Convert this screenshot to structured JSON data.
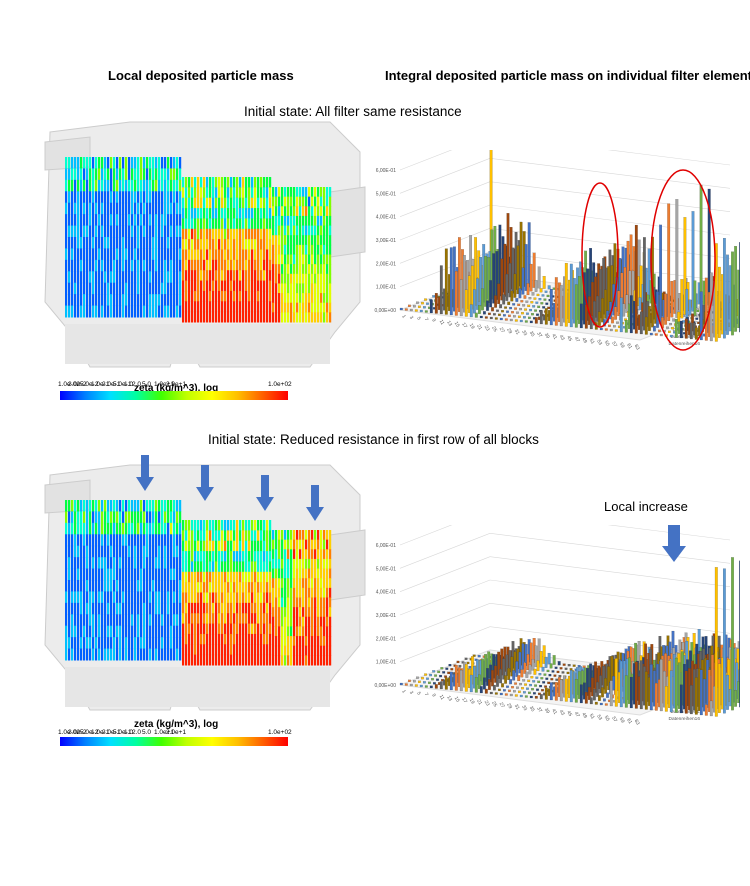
{
  "headers": {
    "left": "Local deposited particle mass",
    "right": "Integral deposited particle mass on individual filter element"
  },
  "panel_top": {
    "subtitle": "Initial state: All filter same resistance",
    "colorbar": {
      "title": "zeta (kg/m^3), log",
      "ticks": [
        "1.0e-02",
        "2.0e-2",
        "5.0e-2",
        "1.0e-1",
        "2.0e-1",
        "5.0e-1",
        "1.0",
        "2.0",
        "5.0",
        "1.0e+1",
        "2.0e+1",
        "1.0e+02"
      ]
    }
  },
  "panel_bottom": {
    "subtitle": "Initial state: Reduced resistance in first row of all blocks",
    "colorbar": {
      "title": "zeta (kg/m^3), log",
      "ticks": [
        "1.0e-02",
        "2.0e-2",
        "5.0e-2",
        "1.0e-1",
        "2.0e-1",
        "5.0e-1",
        "1.0",
        "2.0",
        "5.0",
        "1.0e+1",
        "2.0e+1",
        "1.0e+02"
      ]
    },
    "annotation": "Local increase"
  },
  "colors": {
    "colormap": [
      "#0000ff",
      "#00a0ff",
      "#00ffff",
      "#00ff60",
      "#a0ff00",
      "#ffff00",
      "#ffa000",
      "#ff0000"
    ],
    "highlight_circle": "#e00000",
    "arrow": "#4472c4"
  },
  "chart_data": [
    {
      "type": "bar",
      "title": "",
      "z_ticks": [
        "0,00E+00",
        "1,00E-01",
        "2,00E-01",
        "3,00E-01",
        "4,00E-01",
        "5,00E-01",
        "6,00E-01"
      ],
      "x_ticks": [
        "1",
        "3",
        "5",
        "7",
        "9",
        "11",
        "13",
        "15",
        "17",
        "19",
        "21",
        "23",
        "25",
        "27",
        "29",
        "31",
        "33",
        "35",
        "37",
        "39",
        "41",
        "43",
        "45",
        "47",
        "49",
        "51",
        "53",
        "55",
        "57",
        "59",
        "61",
        "63"
      ],
      "series_labels": [
        "Datenreihen16",
        "Datenreihen13",
        "Datenreihen10",
        "Datenreihen7",
        "Datenreihen4",
        "Datenreihen1"
      ],
      "ylim": [
        0,
        0.6
      ],
      "highlights": 2
    },
    {
      "type": "bar",
      "title": "",
      "z_ticks": [
        "0,00E+00",
        "1,00E-01",
        "2,00E-01",
        "3,00E-01",
        "4,00E-01",
        "5,00E-01",
        "6,00E-01"
      ],
      "x_ticks": [
        "1",
        "3",
        "5",
        "7",
        "9",
        "11",
        "13",
        "15",
        "17",
        "19",
        "21",
        "23",
        "25",
        "27",
        "29",
        "31",
        "33",
        "35",
        "37",
        "39",
        "41",
        "43",
        "45",
        "47",
        "49",
        "51",
        "53",
        "55",
        "57",
        "59",
        "61",
        "63"
      ],
      "series_labels": [
        "Datenreihen16",
        "Datenreihen13",
        "Datenreihen10",
        "Datenreihen7",
        "Datenreihen4",
        "Datenreihen1"
      ],
      "ylim": [
        0,
        0.6
      ],
      "highlights": 0
    }
  ]
}
